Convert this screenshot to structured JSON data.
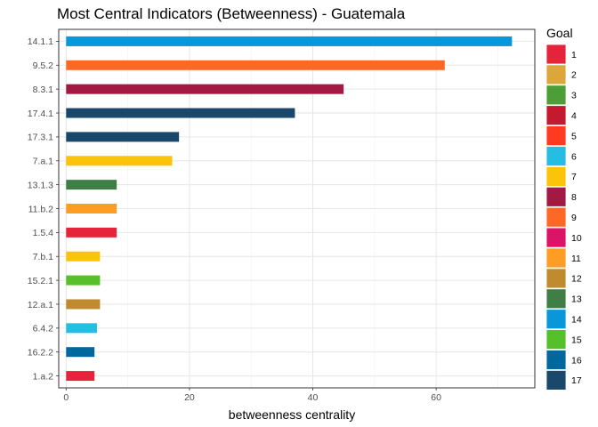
{
  "chart_data": {
    "type": "bar",
    "orientation": "horizontal",
    "title": "Most Central Indicators (Betweenness) - Guatemala",
    "xlabel": "betweenness centrality",
    "ylabel": "",
    "xlim": [
      -1.2,
      76
    ],
    "x_ticks": [
      0,
      20,
      40,
      60
    ],
    "grid": true,
    "categories": [
      "14.1.1",
      "9.5.2",
      "8.3.1",
      "17.4.1",
      "17.3.1",
      "7.a.1",
      "13.1.3",
      "11.b.2",
      "1.5.4",
      "7.b.1",
      "15.2.1",
      "12.a.1",
      "6.4.2",
      "16.2.2",
      "1.a.2"
    ],
    "values": [
      72.3,
      61.4,
      45.0,
      37.1,
      18.3,
      17.2,
      8.2,
      8.2,
      8.2,
      5.5,
      5.5,
      5.5,
      5.0,
      4.6,
      4.6
    ],
    "bar_goals": [
      "14",
      "9",
      "8",
      "17",
      "17",
      "7",
      "13",
      "11",
      "1",
      "7",
      "15",
      "12",
      "6",
      "16",
      "1"
    ],
    "legend": {
      "title": "Goal",
      "position": "right",
      "items": [
        {
          "label": "1",
          "color": "#E5243B"
        },
        {
          "label": "2",
          "color": "#DDA63A"
        },
        {
          "label": "3",
          "color": "#4C9F38"
        },
        {
          "label": "4",
          "color": "#C5192D"
        },
        {
          "label": "5",
          "color": "#FF3A21"
        },
        {
          "label": "6",
          "color": "#26BDE2"
        },
        {
          "label": "7",
          "color": "#FCC30B"
        },
        {
          "label": "8",
          "color": "#A21942"
        },
        {
          "label": "9",
          "color": "#FD6925"
        },
        {
          "label": "10",
          "color": "#DD1367"
        },
        {
          "label": "11",
          "color": "#FD9D24"
        },
        {
          "label": "12",
          "color": "#BF8B2E"
        },
        {
          "label": "13",
          "color": "#3F7E44"
        },
        {
          "label": "14",
          "color": "#0A97D9"
        },
        {
          "label": "15",
          "color": "#56C02B"
        },
        {
          "label": "16",
          "color": "#00689D"
        },
        {
          "label": "17",
          "color": "#19486A"
        }
      ]
    }
  }
}
